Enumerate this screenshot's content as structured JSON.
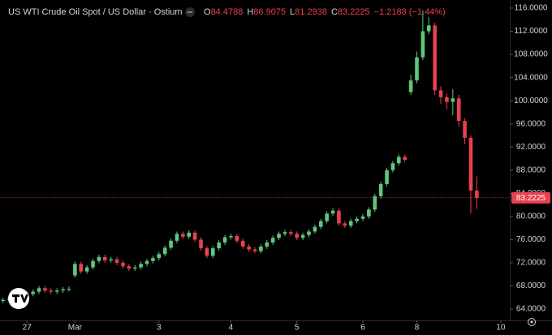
{
  "header": {
    "title": "US WTI Crude Oil Spot / US Dollar · Ostium",
    "o_label": "O",
    "o": "84.4788",
    "h_label": "H",
    "h": "86.9075",
    "l_label": "L",
    "l": "81.2938",
    "c_label": "C",
    "c": "83.2225",
    "change": "−1.2188 (−1.44%)"
  },
  "chart_data": {
    "type": "candlestick",
    "up_color": "#5cc97b",
    "down_color": "#e8414f",
    "xlim": [
      -0.5,
      84.5
    ],
    "ylim": [
      62.04,
      117.4
    ],
    "xticks": [
      {
        "value": 4,
        "label": "27"
      },
      {
        "value": 12,
        "label": "Mar"
      },
      {
        "value": 26,
        "label": "3"
      },
      {
        "value": 38,
        "label": "4"
      },
      {
        "value": 49,
        "label": "5"
      },
      {
        "value": 60,
        "label": "6"
      },
      {
        "value": 69,
        "label": "8"
      },
      {
        "value": 83,
        "label": "10"
      }
    ],
    "yticks": [
      {
        "value": 116,
        "label": "116.0000"
      },
      {
        "value": 112,
        "label": "112.0000"
      },
      {
        "value": 108,
        "label": "108.0000"
      },
      {
        "value": 104,
        "label": "104.0000"
      },
      {
        "value": 100,
        "label": "100.0000"
      },
      {
        "value": 96,
        "label": "96.0000"
      },
      {
        "value": 92,
        "label": "92.0000"
      },
      {
        "value": 88,
        "label": "88.0000"
      },
      {
        "value": 84,
        "label": "84.0000"
      },
      {
        "value": 80,
        "label": "80.0000"
      },
      {
        "value": 76,
        "label": "76.0000"
      },
      {
        "value": 72,
        "label": "72.0000"
      },
      {
        "value": 68,
        "label": "68.0000"
      },
      {
        "value": 64,
        "label": "64.0000"
      }
    ],
    "open": [
      65.4,
      65.6,
      65.8,
      66,
      66.3,
      66.6,
      67,
      67.6,
      67.2,
      67,
      67.2,
      67.4,
      69.8,
      71.8,
      70.5,
      71.2,
      72.3,
      73,
      72.4,
      72.6,
      72,
      71.4,
      71,
      71.2,
      71.8,
      72.3,
      72.8,
      73.5,
      74.6,
      75.8,
      77,
      76.5,
      77.2,
      76,
      74.5,
      73.2,
      74.5,
      75.5,
      76.4,
      76.6,
      75.8,
      74.8,
      74.3,
      74,
      74.8,
      75.5,
      76.3,
      77,
      77.3,
      77,
      76.3,
      76.8,
      77.4,
      78.2,
      79.2,
      80.5,
      81,
      78.8,
      78.4,
      79.2,
      79.6,
      80,
      81.2,
      83.5,
      85.6,
      88,
      89.2,
      90.3,
      101.5,
      103.5,
      107.5,
      112,
      113,
      101.8,
      100.6,
      99.8,
      100.4,
      96.5,
      93.6,
      84.4788
    ],
    "high": [
      66,
      66.2,
      66.4,
      66.7,
      67,
      67.4,
      68,
      68,
      67.6,
      67.6,
      67.8,
      67.9,
      72.2,
      72.2,
      71.6,
      72.7,
      73.4,
      73.4,
      73,
      73,
      72.4,
      71.8,
      71.6,
      72.2,
      72.7,
      73.2,
      73.9,
      75,
      76.2,
      77.4,
      77.4,
      77.6,
      77.6,
      76.4,
      74.9,
      74.9,
      75.9,
      76.8,
      77,
      77,
      76.2,
      75.2,
      74.7,
      75.2,
      75.9,
      76.7,
      77.4,
      77.7,
      77.7,
      77.4,
      77.2,
      77.8,
      78.6,
      79.6,
      80.9,
      81.4,
      81.4,
      79.2,
      79.6,
      80,
      80.4,
      81.6,
      83.9,
      86,
      88.4,
      89.6,
      90.7,
      90.7,
      104.5,
      108.5,
      115.6,
      114.5,
      113.5,
      102.5,
      101.2,
      102,
      101,
      97,
      94,
      86.9075
    ],
    "low": [
      65,
      65.2,
      65.4,
      65.6,
      65.9,
      66.2,
      66.6,
      66.8,
      66.6,
      66.6,
      66.8,
      67,
      69.4,
      70.1,
      70.1,
      70.8,
      71.9,
      72,
      72,
      71.6,
      71,
      70.6,
      70.6,
      70.8,
      71.4,
      71.9,
      72.4,
      73.1,
      74.2,
      75.4,
      76.1,
      76.1,
      75.6,
      74.1,
      72.8,
      72.8,
      74.1,
      75.1,
      76,
      75.4,
      74.4,
      73.9,
      73.6,
      73.6,
      74.4,
      75.1,
      75.9,
      76.6,
      76.6,
      75.9,
      75.9,
      76.4,
      77,
      77.8,
      78.8,
      80.1,
      78.4,
      78,
      78,
      78.8,
      79.2,
      79.6,
      80.8,
      83.1,
      85.2,
      87.6,
      88.8,
      89.4,
      101,
      103,
      107,
      111.5,
      101,
      99.5,
      98.5,
      97.5,
      95.5,
      92.5,
      80.5,
      81.2938
    ],
    "close": [
      65.6,
      65.8,
      66,
      66.3,
      66.6,
      67,
      67.6,
      67.2,
      67,
      67.2,
      67.4,
      67.5,
      71.8,
      70.5,
      71.2,
      72.3,
      73,
      72.4,
      72.6,
      72,
      71.4,
      71,
      71.2,
      71.8,
      72.3,
      72.8,
      73.5,
      74.6,
      75.8,
      77,
      76.5,
      77.2,
      76,
      74.5,
      73.2,
      74.5,
      75.5,
      76.4,
      76.6,
      75.8,
      74.8,
      74.3,
      74,
      74.8,
      75.5,
      76.3,
      77,
      77.3,
      77,
      76.3,
      76.8,
      77.4,
      78.2,
      79.2,
      80.5,
      81,
      78.8,
      78.4,
      79.2,
      79.6,
      80,
      81.2,
      83.5,
      85.6,
      88,
      89.2,
      90.3,
      89.8,
      103.5,
      107.5,
      112,
      113,
      101.8,
      100.6,
      99.8,
      100.4,
      96.5,
      93.6,
      84.4788,
      83.2225
    ]
  }
}
